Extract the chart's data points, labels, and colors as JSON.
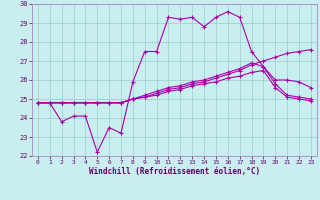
{
  "xlabel": "Windchill (Refroidissement éolien,°C)",
  "xlim": [
    -0.5,
    23.5
  ],
  "ylim": [
    22,
    30
  ],
  "xticks": [
    0,
    1,
    2,
    3,
    4,
    5,
    6,
    7,
    8,
    9,
    10,
    11,
    12,
    13,
    14,
    15,
    16,
    17,
    18,
    19,
    20,
    21,
    22,
    23
  ],
  "yticks": [
    22,
    23,
    24,
    25,
    26,
    27,
    28,
    29,
    30
  ],
  "bg_color": "#c8eef0",
  "grid_color": "#99cccc",
  "line_color": "#aa00aa",
  "line1": [
    24.8,
    24.8,
    23.8,
    24.1,
    24.1,
    22.2,
    23.5,
    23.2,
    25.9,
    27.5,
    27.5,
    29.3,
    29.2,
    29.3,
    28.8,
    29.3,
    29.6,
    29.3,
    27.5,
    26.7,
    26.0,
    26.0,
    25.9,
    25.6
  ],
  "line2": [
    24.8,
    24.8,
    24.8,
    24.8,
    24.8,
    24.8,
    24.8,
    24.8,
    25.0,
    25.1,
    25.3,
    25.5,
    25.6,
    25.8,
    25.9,
    26.1,
    26.3,
    26.5,
    26.8,
    27.0,
    27.2,
    27.4,
    27.5,
    27.6
  ],
  "line3": [
    24.8,
    24.8,
    24.8,
    24.8,
    24.8,
    24.8,
    24.8,
    24.8,
    25.0,
    25.2,
    25.4,
    25.6,
    25.7,
    25.9,
    26.0,
    26.2,
    26.4,
    26.6,
    26.9,
    26.7,
    25.8,
    25.2,
    25.1,
    25.0
  ],
  "line4": [
    24.8,
    24.8,
    24.8,
    24.8,
    24.8,
    24.8,
    24.8,
    24.8,
    25.0,
    25.1,
    25.2,
    25.4,
    25.5,
    25.7,
    25.8,
    25.9,
    26.1,
    26.2,
    26.4,
    26.5,
    25.6,
    25.1,
    25.0,
    24.9
  ]
}
